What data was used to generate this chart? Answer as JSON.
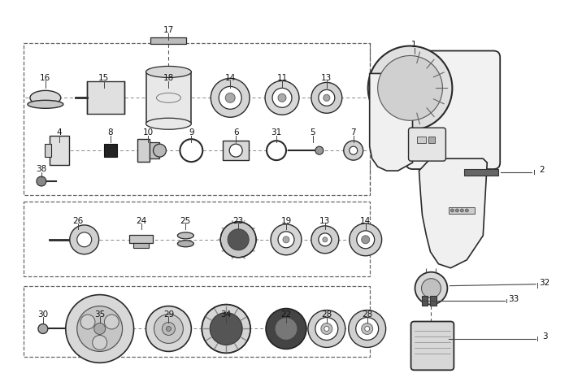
{
  "bg": "#ffffff",
  "lc": "#2a2a2a",
  "gc": "#888888",
  "figsize": [
    7.0,
    4.7
  ],
  "dpi": 100,
  "labels": {
    "row1": [
      [
        "16",
        55,
        83
      ],
      [
        "15",
        127,
        83
      ],
      [
        "17",
        207,
        27
      ],
      [
        "18",
        207,
        83
      ],
      [
        "14",
        283,
        83
      ],
      [
        "11",
        347,
        83
      ],
      [
        "13",
        402,
        83
      ],
      [
        "1",
        510,
        67
      ]
    ],
    "row2": [
      [
        "4",
        72,
        185
      ],
      [
        "8",
        135,
        180
      ],
      [
        "10",
        182,
        180
      ],
      [
        "9",
        235,
        180
      ],
      [
        "6",
        290,
        180
      ],
      [
        "31",
        340,
        180
      ],
      [
        "5",
        385,
        185
      ],
      [
        "7",
        435,
        185
      ],
      [
        "38",
        50,
        225
      ]
    ],
    "right": [
      [
        "2",
        660,
        163
      ],
      [
        "32",
        660,
        290
      ],
      [
        "33",
        630,
        315
      ],
      [
        "3",
        672,
        380
      ]
    ],
    "row3": [
      [
        "26",
        95,
        263
      ],
      [
        "24",
        173,
        263
      ],
      [
        "25",
        228,
        263
      ],
      [
        "23",
        293,
        263
      ],
      [
        "19",
        352,
        263
      ],
      [
        "13",
        400,
        263
      ],
      [
        "14",
        450,
        263
      ]
    ],
    "row4": [
      [
        "30",
        52,
        393
      ],
      [
        "35",
        122,
        388
      ],
      [
        "29",
        207,
        393
      ],
      [
        "34",
        278,
        393
      ],
      [
        "22",
        352,
        393
      ],
      [
        "28",
        402,
        398
      ],
      [
        "28",
        452,
        398
      ]
    ]
  }
}
